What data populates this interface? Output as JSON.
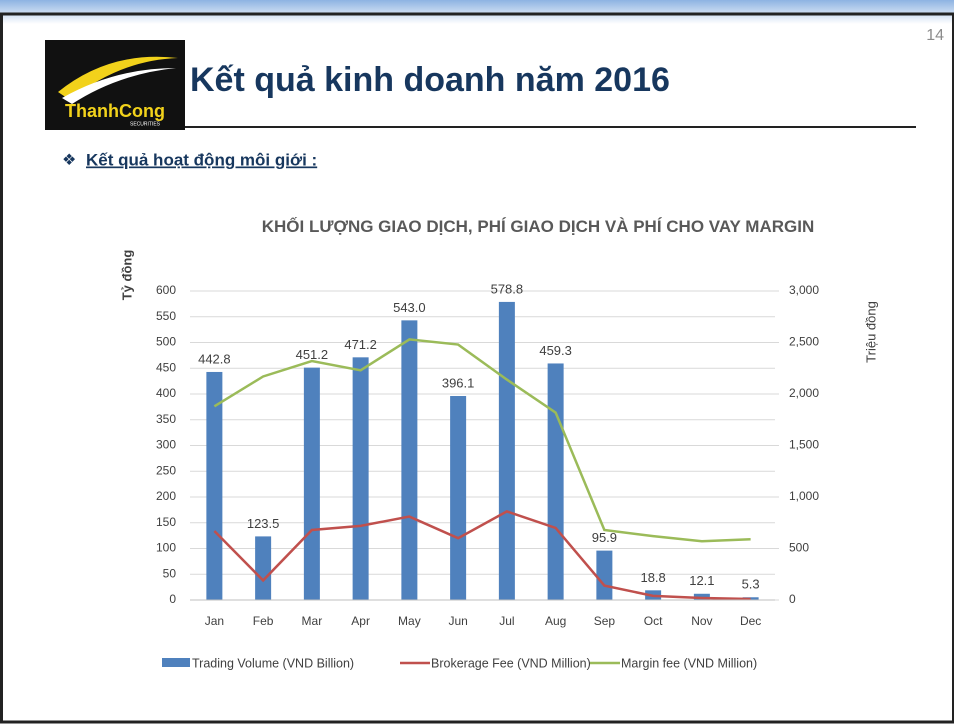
{
  "slide": {
    "page_number": "14",
    "title": "Kết quả kinh doanh năm 2016",
    "logo_text": "ThanhCong",
    "logo_subtext": "SECURITIES",
    "bullet_marker": "❖",
    "bullet": "Kết quả hoạt động môi giới :"
  },
  "chart_data": {
    "type": "bar_line",
    "title": "KHỐI LƯỢNG GIAO DỊCH, PHÍ GIAO DỊCH VÀ PHÍ  CHO VAY MARGIN",
    "ylabel": "Tỷ đồng",
    "y2label": "Triệu đồng",
    "categories": [
      "Jan",
      "Feb",
      "Mar",
      "Apr",
      "May",
      "Jun",
      "Jul",
      "Aug",
      "Sep",
      "Oct",
      "Nov",
      "Dec"
    ],
    "series": [
      {
        "name": "Trading Volume (VND Billion)",
        "color": "#4f81bd",
        "kind": "bar",
        "axis": "y",
        "values": [
          442.8,
          123.5,
          451.2,
          471.2,
          543.0,
          396.1,
          578.8,
          459.3,
          95.9,
          18.8,
          12.1,
          5.3
        ],
        "value_labels": [
          "442.8",
          "123.5",
          "451.2",
          "471.2",
          "543.0",
          "396.1",
          "578.8",
          "459.3",
          "95.9",
          "18.8",
          "12.1",
          "5.3"
        ]
      },
      {
        "name": "Brokerage Fee (VND Million)",
        "color": "#c0504d",
        "kind": "line",
        "axis": "y2",
        "values": [
          670,
          190,
          680,
          720,
          810,
          600,
          860,
          700,
          140,
          40,
          20,
          10
        ]
      },
      {
        "name": "Margin fee (VND Million)",
        "color": "#9bbb59",
        "kind": "line",
        "axis": "y2",
        "values": [
          1880,
          2170,
          2320,
          2230,
          2530,
          2480,
          2140,
          1820,
          680,
          620,
          570,
          590
        ]
      }
    ],
    "ylim": [
      0,
      600
    ],
    "yticks": [
      0,
      50,
      100,
      150,
      200,
      250,
      300,
      350,
      400,
      450,
      500,
      550,
      600
    ],
    "y2lim": [
      0,
      3000
    ],
    "y2ticks": [
      0,
      500,
      {
        "value": 1000,
        "label": "1,000"
      },
      {
        "value": 1500,
        "label": "1,500"
      },
      {
        "value": 2000,
        "label": "2,000"
      },
      {
        "value": 2500,
        "label": "2,500"
      },
      {
        "value": 3000,
        "label": "3,000"
      }
    ],
    "grid": true,
    "legend": "bottom"
  }
}
